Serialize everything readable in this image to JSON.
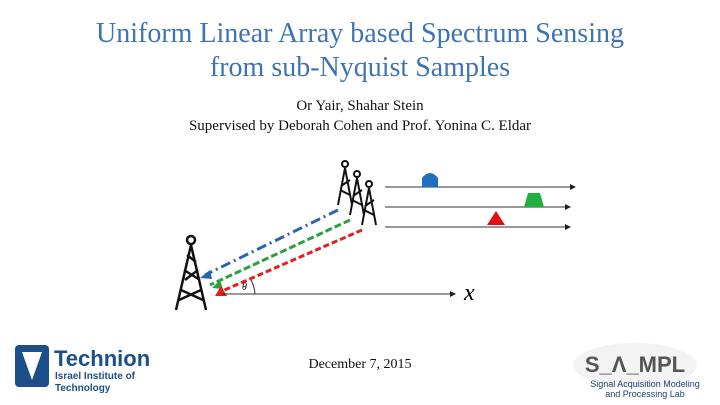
{
  "header": {
    "title_line1": "Uniform Linear Array based Spectrum Sensing",
    "title_line2": "from sub-Nyquist Samples",
    "authors": "Or Yair, Shahar Stein",
    "supervisors": "Supervised by Deborah Cohen and Prof. Yonina C. Eldar"
  },
  "diagram": {
    "axis_label": "x",
    "angle_label": "θ"
  },
  "footer": {
    "date": "December 7, 2015",
    "technion": {
      "name": "Technion",
      "line1": "Israel Institute of",
      "line2": "Technology"
    },
    "sampl": {
      "name": "S_Λ_MPL",
      "line1": "Signal Acquisition Modeling",
      "line2": "and Processing Lab"
    }
  }
}
